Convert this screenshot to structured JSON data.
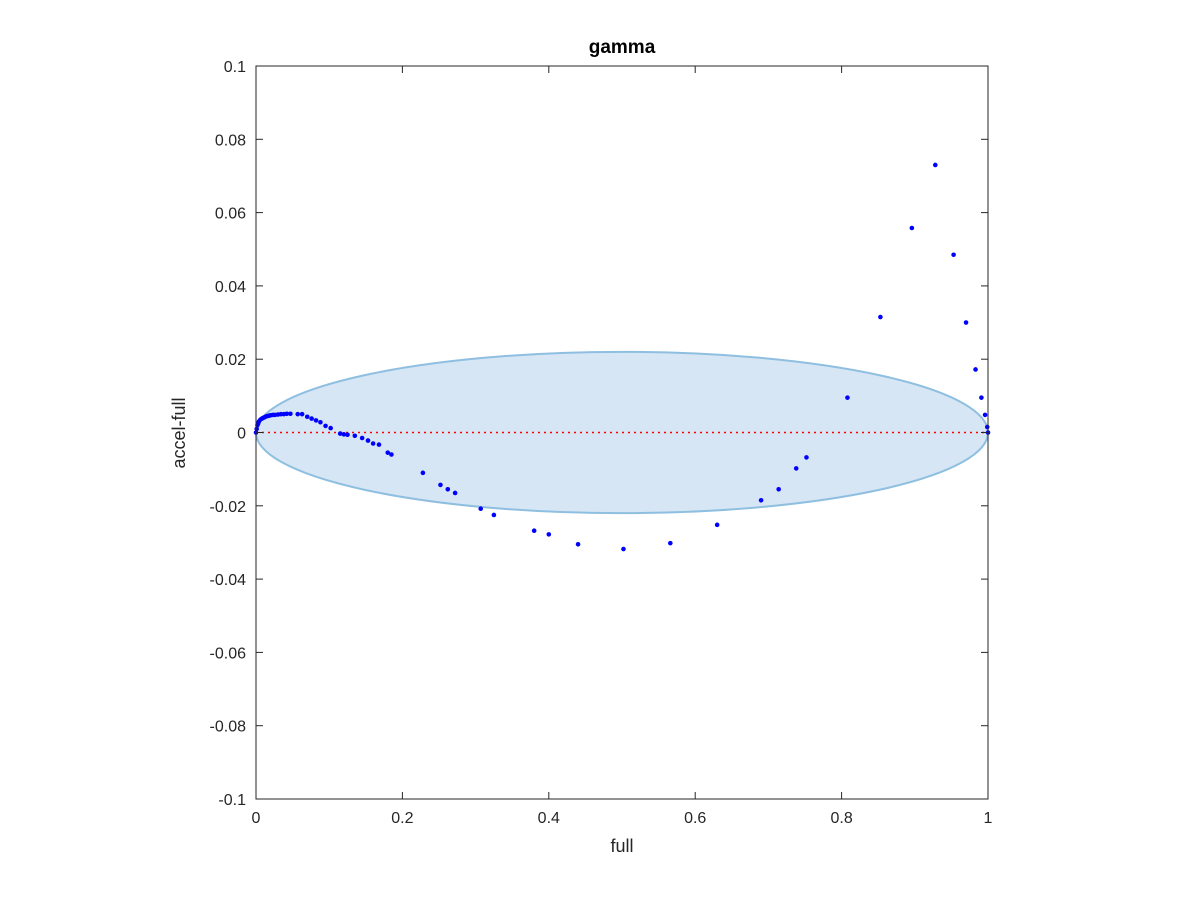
{
  "chart_data": {
    "type": "scatter",
    "title": "gamma",
    "xlabel": "full",
    "ylabel": "accel-full",
    "xlim": [
      0,
      1
    ],
    "ylim": [
      -0.1,
      0.1
    ],
    "x_ticks": [
      0,
      0.2,
      0.4,
      0.6,
      0.8,
      1
    ],
    "x_tick_labels": [
      "0",
      "0.2",
      "0.4",
      "0.6",
      "0.8",
      "1"
    ],
    "y_ticks": [
      -0.1,
      -0.08,
      -0.06,
      -0.04,
      -0.02,
      0,
      0.02,
      0.04,
      0.06,
      0.08,
      0.1
    ],
    "y_tick_labels": [
      "-0.1",
      "-0.08",
      "-0.06",
      "-0.04",
      "-0.02",
      "0",
      "0.02",
      "0.04",
      "0.06",
      "0.08",
      "0.1"
    ],
    "grid": false,
    "box": true,
    "colors": {
      "points": "#0000ff",
      "reference_line": "#ff0000",
      "ellipse_fill": "#d6e6f4",
      "ellipse_edge": "#8fbfe0",
      "axes": "#262626"
    },
    "reference_line": {
      "y": 0,
      "style": "dotted"
    },
    "ellipse": {
      "center": [
        0.5,
        0
      ],
      "x_radius": 0.5,
      "y_radius": 0.022
    },
    "points": [
      [
        0.0,
        0.0
      ],
      [
        0.001,
        0.001
      ],
      [
        0.002,
        0.002
      ],
      [
        0.003,
        0.0025
      ],
      [
        0.004,
        0.003
      ],
      [
        0.006,
        0.0035
      ],
      [
        0.008,
        0.0038
      ],
      [
        0.01,
        0.004
      ],
      [
        0.012,
        0.0042
      ],
      [
        0.014,
        0.0044
      ],
      [
        0.016,
        0.0045
      ],
      [
        0.018,
        0.0046
      ],
      [
        0.02,
        0.0047
      ],
      [
        0.023,
        0.0048
      ],
      [
        0.026,
        0.0048
      ],
      [
        0.03,
        0.0049
      ],
      [
        0.034,
        0.005
      ],
      [
        0.038,
        0.005
      ],
      [
        0.042,
        0.0051
      ],
      [
        0.047,
        0.0051
      ],
      [
        0.057,
        0.005
      ],
      [
        0.063,
        0.005
      ],
      [
        0.07,
        0.0043
      ],
      [
        0.076,
        0.0038
      ],
      [
        0.082,
        0.0033
      ],
      [
        0.088,
        0.0028
      ],
      [
        0.095,
        0.0018
      ],
      [
        0.102,
        0.0012
      ],
      [
        0.115,
        -0.0003
      ],
      [
        0.12,
        -0.0005
      ],
      [
        0.125,
        -0.0006
      ],
      [
        0.135,
        -0.0009
      ],
      [
        0.145,
        -0.0015
      ],
      [
        0.153,
        -0.0022
      ],
      [
        0.16,
        -0.003
      ],
      [
        0.168,
        -0.0033
      ],
      [
        0.18,
        -0.0055
      ],
      [
        0.185,
        -0.006
      ],
      [
        0.228,
        -0.011
      ],
      [
        0.252,
        -0.0143
      ],
      [
        0.262,
        -0.0155
      ],
      [
        0.272,
        -0.0165
      ],
      [
        0.307,
        -0.0208
      ],
      [
        0.325,
        -0.0225
      ],
      [
        0.38,
        -0.0268
      ],
      [
        0.4,
        -0.0278
      ],
      [
        0.44,
        -0.0305
      ],
      [
        0.502,
        -0.0318
      ],
      [
        0.566,
        -0.0302
      ],
      [
        0.63,
        -0.0252
      ],
      [
        0.69,
        -0.0185
      ],
      [
        0.714,
        -0.0155
      ],
      [
        0.738,
        -0.0098
      ],
      [
        0.752,
        -0.0068
      ],
      [
        0.808,
        0.0095
      ],
      [
        0.853,
        0.0315
      ],
      [
        0.896,
        0.0558
      ],
      [
        0.928,
        0.073
      ],
      [
        0.953,
        0.0485
      ],
      [
        0.97,
        0.03
      ],
      [
        0.983,
        0.0172
      ],
      [
        0.991,
        0.0095
      ],
      [
        0.996,
        0.0048
      ],
      [
        0.999,
        0.0015
      ],
      [
        1.0,
        0.0
      ]
    ]
  }
}
